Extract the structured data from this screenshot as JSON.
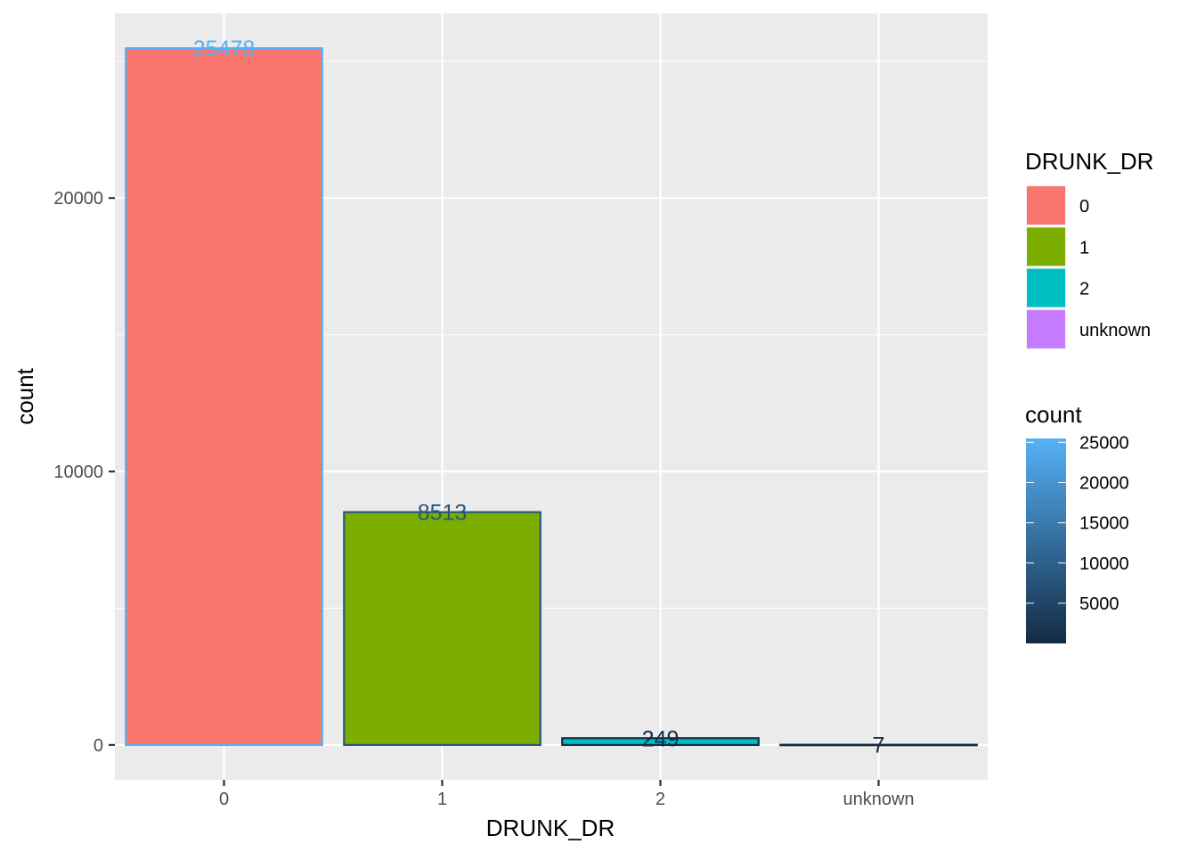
{
  "chart_data": {
    "type": "bar",
    "xlabel": "DRUNK_DR",
    "ylabel": "count",
    "categories": [
      "0",
      "1",
      "2",
      "unknown"
    ],
    "values": [
      25478,
      8513,
      249,
      7
    ],
    "data_labels": [
      "25478",
      "8513",
      "249",
      "7"
    ],
    "ylim": [
      -1274,
      26752
    ],
    "y_ticks": [
      0,
      10000,
      20000
    ],
    "y_tick_labels": [
      "0",
      "10000",
      "20000"
    ],
    "grid": true,
    "legend_position": "right",
    "fill_legend": {
      "title": "DRUNK_DR",
      "entries": [
        {
          "label": "0",
          "color": "#F8766D"
        },
        {
          "label": "1",
          "color": "#7CAE00"
        },
        {
          "label": "2",
          "color": "#00BFC4"
        },
        {
          "label": "unknown",
          "color": "#C77CFF"
        }
      ]
    },
    "color_legend": {
      "title": "count",
      "range": [
        7,
        25478
      ],
      "low_color": "#132B43",
      "high_color": "#56B1F7",
      "ticks": [
        5000,
        10000,
        15000,
        20000,
        25000
      ],
      "tick_labels": [
        "5000",
        "10000",
        "15000",
        "20000",
        "25000"
      ]
    },
    "colors": {
      "panel_background": "#EBEBEB",
      "grid": "#FFFFFF"
    }
  }
}
